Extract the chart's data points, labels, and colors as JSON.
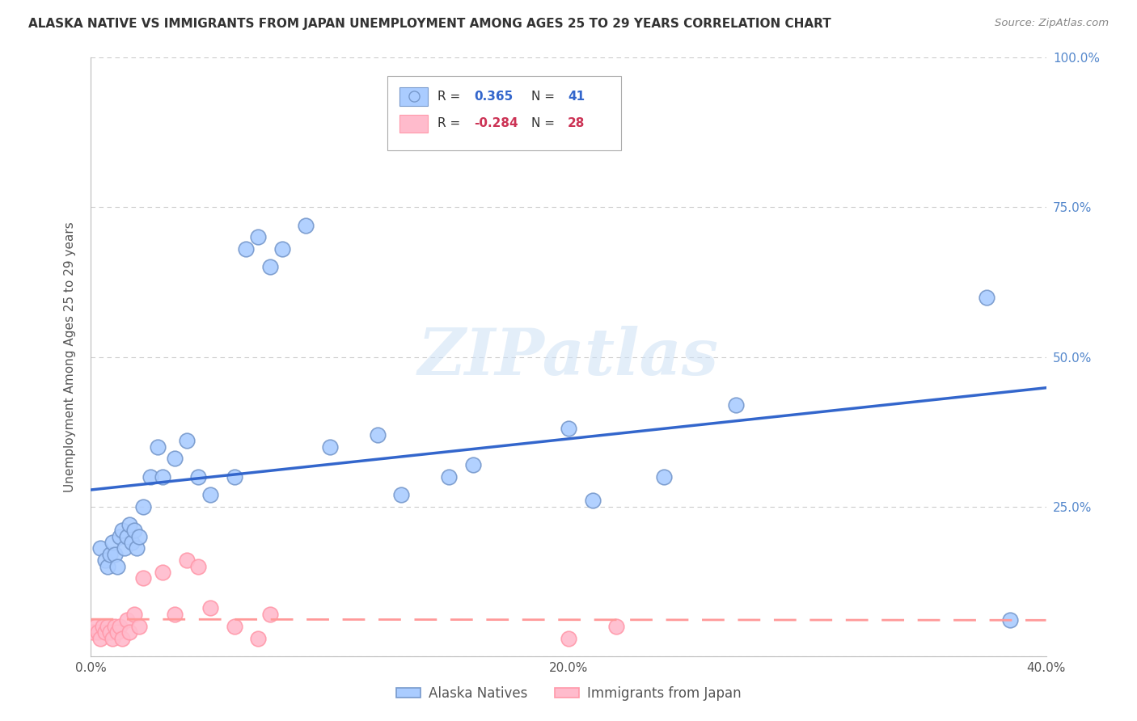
{
  "title": "ALASKA NATIVE VS IMMIGRANTS FROM JAPAN UNEMPLOYMENT AMONG AGES 25 TO 29 YEARS CORRELATION CHART",
  "source": "Source: ZipAtlas.com",
  "ylabel": "Unemployment Among Ages 25 to 29 years",
  "xlim": [
    0.0,
    0.4
  ],
  "ylim": [
    0.0,
    1.0
  ],
  "xticks": [
    0.0,
    0.1,
    0.2,
    0.3,
    0.4
  ],
  "xticklabels": [
    "0.0%",
    "",
    "20.0%",
    "",
    "40.0%"
  ],
  "yticks_right": [
    0.25,
    0.5,
    0.75,
    1.0
  ],
  "yticklabels_right": [
    "25.0%",
    "50.0%",
    "75.0%",
    "100.0%"
  ],
  "line1_color": "#3366cc",
  "line2_color": "#ff9999",
  "scatter1_color": "#aaccff",
  "scatter1_edge": "#7799cc",
  "scatter2_color": "#ffbbcc",
  "scatter2_edge": "#ff99aa",
  "watermark": "ZIPatlas",
  "alaska_x": [
    0.004,
    0.006,
    0.007,
    0.008,
    0.009,
    0.01,
    0.011,
    0.012,
    0.013,
    0.014,
    0.015,
    0.016,
    0.017,
    0.018,
    0.019,
    0.02,
    0.022,
    0.025,
    0.028,
    0.03,
    0.035,
    0.04,
    0.045,
    0.05,
    0.06,
    0.065,
    0.07,
    0.075,
    0.08,
    0.09,
    0.1,
    0.12,
    0.13,
    0.15,
    0.16,
    0.2,
    0.21,
    0.24,
    0.27,
    0.375,
    0.385
  ],
  "alaska_y": [
    0.18,
    0.16,
    0.15,
    0.17,
    0.19,
    0.17,
    0.15,
    0.2,
    0.21,
    0.18,
    0.2,
    0.22,
    0.19,
    0.21,
    0.18,
    0.2,
    0.25,
    0.3,
    0.35,
    0.3,
    0.33,
    0.36,
    0.3,
    0.27,
    0.3,
    0.68,
    0.7,
    0.65,
    0.68,
    0.72,
    0.35,
    0.37,
    0.27,
    0.3,
    0.32,
    0.38,
    0.26,
    0.3,
    0.42,
    0.6,
    0.06
  ],
  "japan_x": [
    0.001,
    0.002,
    0.003,
    0.004,
    0.005,
    0.006,
    0.007,
    0.008,
    0.009,
    0.01,
    0.011,
    0.012,
    0.013,
    0.015,
    0.016,
    0.018,
    0.02,
    0.022,
    0.03,
    0.035,
    0.04,
    0.045,
    0.05,
    0.06,
    0.07,
    0.075,
    0.2,
    0.22
  ],
  "japan_y": [
    0.04,
    0.05,
    0.04,
    0.03,
    0.05,
    0.04,
    0.05,
    0.04,
    0.03,
    0.05,
    0.04,
    0.05,
    0.03,
    0.06,
    0.04,
    0.07,
    0.05,
    0.13,
    0.14,
    0.07,
    0.16,
    0.15,
    0.08,
    0.05,
    0.03,
    0.07,
    0.03,
    0.05
  ],
  "background_color": "#ffffff",
  "grid_color": "#cccccc",
  "legend_r1": "0.365",
  "legend_n1": "41",
  "legend_r2": "-0.284",
  "legend_n2": "28"
}
